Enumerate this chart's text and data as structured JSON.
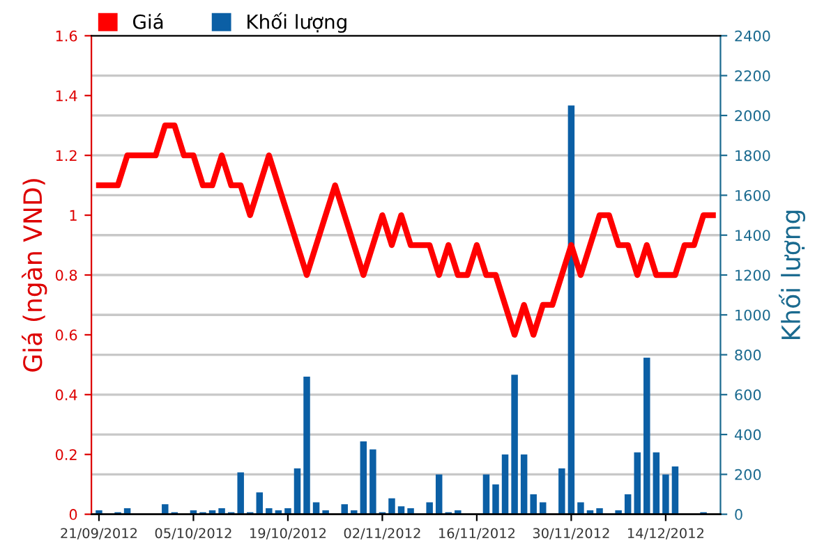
{
  "chart_data": {
    "type": "line",
    "ylabel": "Giá (ngàn VND)",
    "y2label": "Khối lượng",
    "categories": [
      "21/09/2012",
      null,
      null,
      null,
      null,
      null,
      null,
      null,
      null,
      null,
      "05/10/2012",
      null,
      null,
      null,
      null,
      null,
      null,
      null,
      null,
      null,
      "19/10/2012",
      null,
      null,
      null,
      null,
      null,
      null,
      null,
      null,
      null,
      "02/11/2012",
      null,
      null,
      null,
      null,
      null,
      null,
      null,
      null,
      null,
      "16/11/2012",
      null,
      null,
      null,
      null,
      null,
      null,
      null,
      null,
      null,
      "30/11/2012",
      null,
      null,
      null,
      null,
      null,
      null,
      null,
      null,
      null,
      "14/12/2012",
      null,
      null,
      null,
      null,
      null
    ],
    "series": [
      {
        "name": "Giá",
        "color": "#ff0000",
        "values": [
          1.1,
          1.1,
          1.1,
          1.2,
          1.2,
          1.2,
          1.2,
          1.3,
          1.3,
          1.2,
          1.2,
          1.1,
          1.1,
          1.2,
          1.1,
          1.1,
          1.0,
          1.1,
          1.2,
          1.1,
          1.0,
          0.9,
          0.8,
          0.9,
          1.0,
          1.1,
          1.0,
          0.9,
          0.8,
          0.9,
          1.0,
          0.9,
          1.0,
          0.9,
          0.9,
          0.9,
          0.8,
          0.9,
          0.8,
          0.8,
          0.9,
          0.8,
          0.8,
          0.7,
          0.6,
          0.7,
          0.6,
          0.7,
          0.7,
          0.8,
          0.9,
          0.8,
          0.9,
          1.0,
          1.0,
          0.9,
          0.9,
          0.8,
          0.9,
          0.8,
          0.8,
          0.8,
          0.9,
          0.9,
          1.0,
          1.0
        ]
      },
      {
        "name": "Khối lượng",
        "type": "bar",
        "axis": "y2",
        "color": "#0b5fa5",
        "values": [
          20,
          0,
          10,
          30,
          0,
          0,
          0,
          50,
          10,
          0,
          20,
          10,
          20,
          30,
          10,
          210,
          10,
          110,
          30,
          20,
          30,
          230,
          690,
          60,
          20,
          0,
          50,
          20,
          365,
          325,
          10,
          80,
          40,
          30,
          0,
          60,
          200,
          10,
          20,
          0,
          0,
          200,
          150,
          300,
          700,
          300,
          100,
          60,
          0,
          230,
          2050,
          60,
          20,
          30,
          0,
          20,
          100,
          310,
          785,
          310,
          200,
          240,
          0,
          0,
          10,
          0
        ]
      }
    ],
    "ylim": [
      0,
      1.6
    ],
    "yticks": [
      0,
      0.2,
      0.4,
      0.6,
      0.8,
      1,
      1.2,
      1.4,
      1.6
    ],
    "y2lim": [
      0,
      2400
    ],
    "y2ticks": [
      0,
      200,
      400,
      600,
      800,
      1000,
      1200,
      1400,
      1600,
      1800,
      2000,
      2200,
      2400
    ],
    "grid": "y",
    "legend": "top left",
    "marker": "none",
    "line_style": "solid"
  }
}
